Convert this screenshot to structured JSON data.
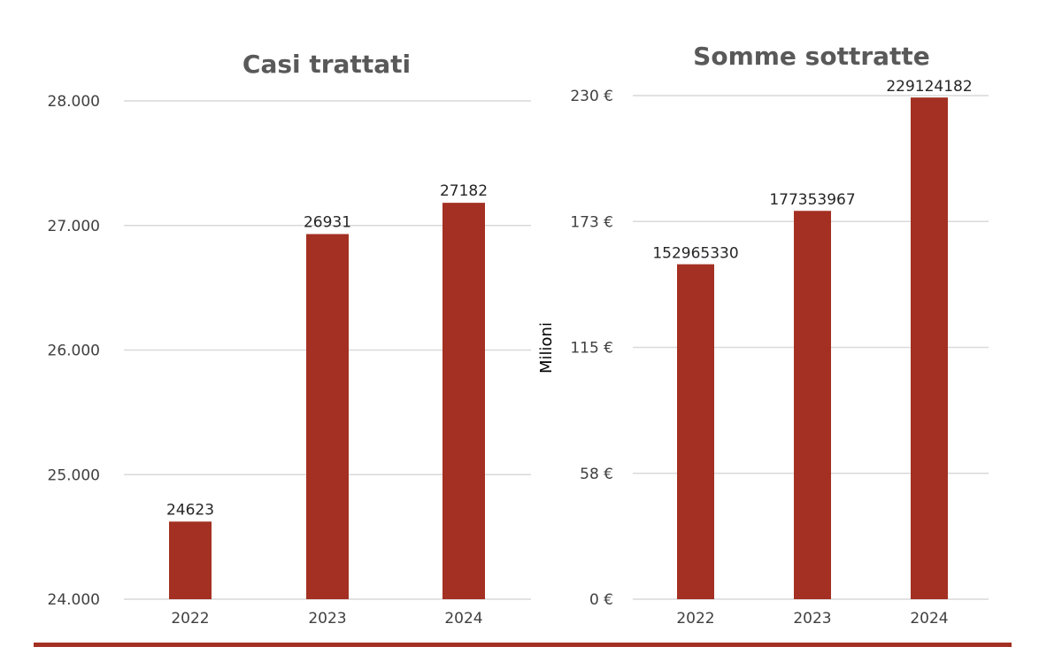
{
  "colors": {
    "bar": "#a33022",
    "gridline": "#d9d9d9",
    "bottom_rule": "#a33022"
  },
  "chart_data": [
    {
      "type": "bar",
      "title": "Casi trattati",
      "categories": [
        "2022",
        "2023",
        "2024"
      ],
      "values": [
        24623,
        26931,
        27182
      ],
      "data_labels": [
        "24623",
        "26931",
        "27182"
      ],
      "ylim": [
        24000,
        28000
      ],
      "yticks": [
        24000,
        25000,
        26000,
        27000,
        28000
      ],
      "ytick_labels": [
        "24.000",
        "25.000",
        "26.000",
        "27.000",
        "28.000"
      ],
      "ylabel": "",
      "grid": true,
      "legend": "none"
    },
    {
      "type": "bar",
      "title": "Somme sottratte",
      "categories": [
        "2022",
        "2023",
        "2024"
      ],
      "values": [
        152965330,
        177353967,
        229124182
      ],
      "data_labels": [
        "152965330",
        "177353967",
        "229124182"
      ],
      "ylim": [
        0,
        230000000
      ],
      "yticks": [
        0,
        57500000,
        115000000,
        172500000,
        230000000
      ],
      "ytick_labels": [
        "0 €",
        "58 €",
        "115 €",
        "173 €",
        "230 €"
      ],
      "ylabel": "Milioni",
      "grid": true,
      "legend": "none"
    }
  ]
}
